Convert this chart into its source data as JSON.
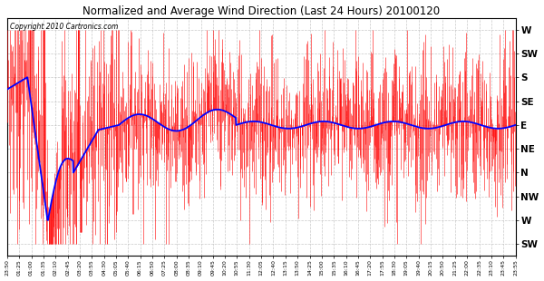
{
  "title": "Normalized and Average Wind Direction (Last 24 Hours) 20100120",
  "copyright_text": "Copyright 2010 Cartronics.com",
  "background_color": "#ffffff",
  "plot_bg_color": "#ffffff",
  "grid_color": "#bbbbbb",
  "red_color": "#ff0000",
  "blue_color": "#0000ff",
  "ytick_labels_right": [
    "W",
    "SW",
    "S",
    "SE",
    "E",
    "NE",
    "N",
    "NW",
    "W",
    "SW"
  ],
  "ytick_values": [
    9,
    8,
    7,
    6,
    5,
    4,
    3,
    2,
    1,
    0
  ],
  "ylim": [
    -0.5,
    9.5
  ],
  "xtick_labels": [
    "23:50",
    "01:25",
    "01:00",
    "01:35",
    "02:10",
    "02:45",
    "03:20",
    "03:55",
    "04:30",
    "05:05",
    "05:40",
    "06:15",
    "06:50",
    "07:25",
    "08:00",
    "08:35",
    "09:10",
    "09:45",
    "10:20",
    "10:55",
    "11:30",
    "12:05",
    "12:40",
    "13:15",
    "13:50",
    "14:25",
    "15:00",
    "15:35",
    "16:10",
    "16:45",
    "17:20",
    "17:55",
    "18:30",
    "19:05",
    "19:40",
    "20:15",
    "20:50",
    "21:25",
    "22:00",
    "22:35",
    "23:10",
    "23:45",
    "23:55"
  ],
  "num_points": 1440
}
